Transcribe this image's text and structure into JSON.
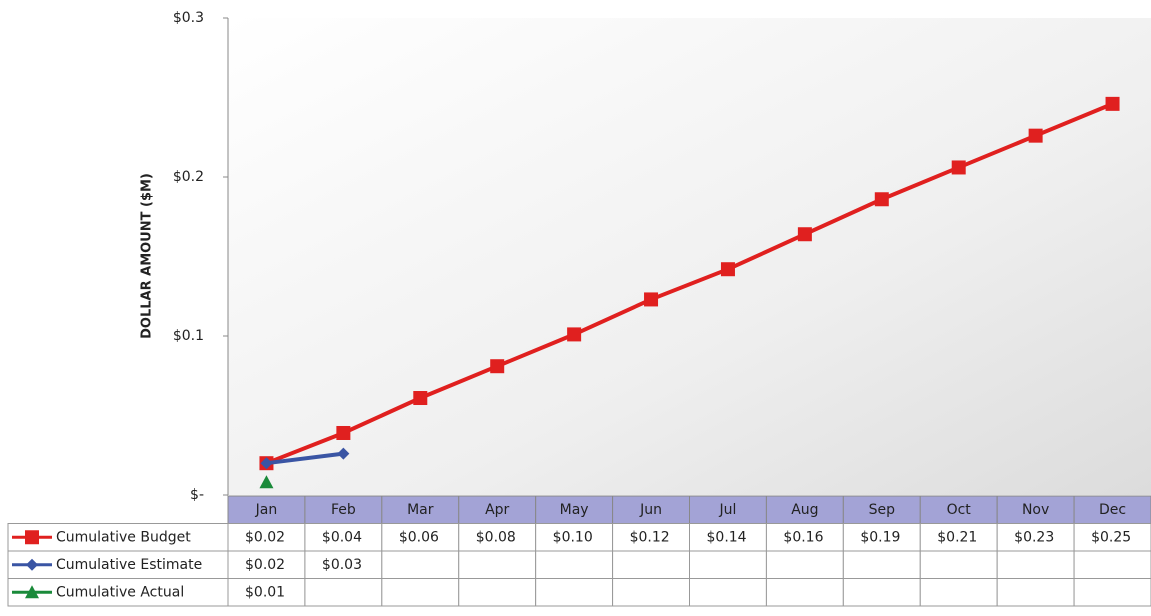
{
  "chart_data": {
    "type": "line",
    "y_label": "DOLLAR AMOUNT ($M)",
    "categories": [
      "Jan",
      "Feb",
      "Mar",
      "Apr",
      "May",
      "Jun",
      "Jul",
      "Aug",
      "Sep",
      "Oct",
      "Nov",
      "Dec"
    ],
    "series": [
      {
        "name": "Cumulative Budget",
        "color": "#e0201f",
        "marker": "square",
        "values": [
          0.02,
          0.039,
          0.061,
          0.081,
          0.101,
          0.123,
          0.142,
          0.164,
          0.186,
          0.206,
          0.226,
          0.246
        ],
        "value_labels": [
          "$0.02",
          "$0.04",
          "$0.06",
          "$0.08",
          "$0.10",
          "$0.12",
          "$0.14",
          "$0.16",
          "$0.19",
          "$0.21",
          "$0.23",
          "$0.25"
        ]
      },
      {
        "name": "Cumulative Estimate",
        "color": "#3a55a4",
        "marker": "diamond",
        "values": [
          0.02,
          0.026,
          null,
          null,
          null,
          null,
          null,
          null,
          null,
          null,
          null,
          null
        ],
        "value_labels": [
          "$0.02",
          "$0.03",
          null,
          null,
          null,
          null,
          null,
          null,
          null,
          null,
          null,
          null
        ]
      },
      {
        "name": "Cumulative Actual",
        "color": "#1a8a3a",
        "marker": "triangle",
        "values": [
          0.008,
          null,
          null,
          null,
          null,
          null,
          null,
          null,
          null,
          null,
          null,
          null
        ],
        "value_labels": [
          "$0.01",
          null,
          null,
          null,
          null,
          null,
          null,
          null,
          null,
          null,
          null,
          null
        ]
      }
    ],
    "ylim": [
      0,
      0.3
    ],
    "yticks": [
      {
        "value": 0,
        "label": "$-"
      },
      {
        "value": 0.1,
        "label": "$0.1"
      },
      {
        "value": 0.2,
        "label": "$0.2"
      },
      {
        "value": 0.3,
        "label": "$0.3"
      }
    ],
    "data_table": true
  }
}
